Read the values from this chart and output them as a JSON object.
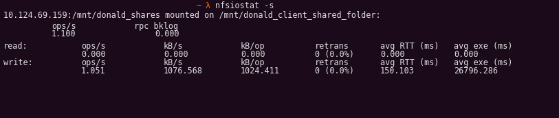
{
  "bg_color": "#1a0a1a",
  "title_tilde_color": "#66cc44",
  "title_lambda_color": "#ff6600",
  "title_cmd_color": "#e0e0e0",
  "mount_color": "#e0e0e0",
  "mount_line": "10.124.69.159:/mnt/donald_shares mounted on /mnt/donald_client_shared_folder:",
  "col_headers": [
    "ops/s",
    "kB/s",
    "kB/op",
    "retrans",
    "avg RTT (ms)",
    "avg exe (ms)"
  ],
  "read_values": [
    "0.000",
    "0.000",
    "0.000",
    "0 (0.0%)",
    "0.000",
    "0.000"
  ],
  "write_values": [
    "1.051",
    "1076.568",
    "1024.411",
    "0 (0.0%)",
    "150.103",
    "26796.286"
  ],
  "label_color": "#e0e0e0",
  "font_size": 8.5
}
